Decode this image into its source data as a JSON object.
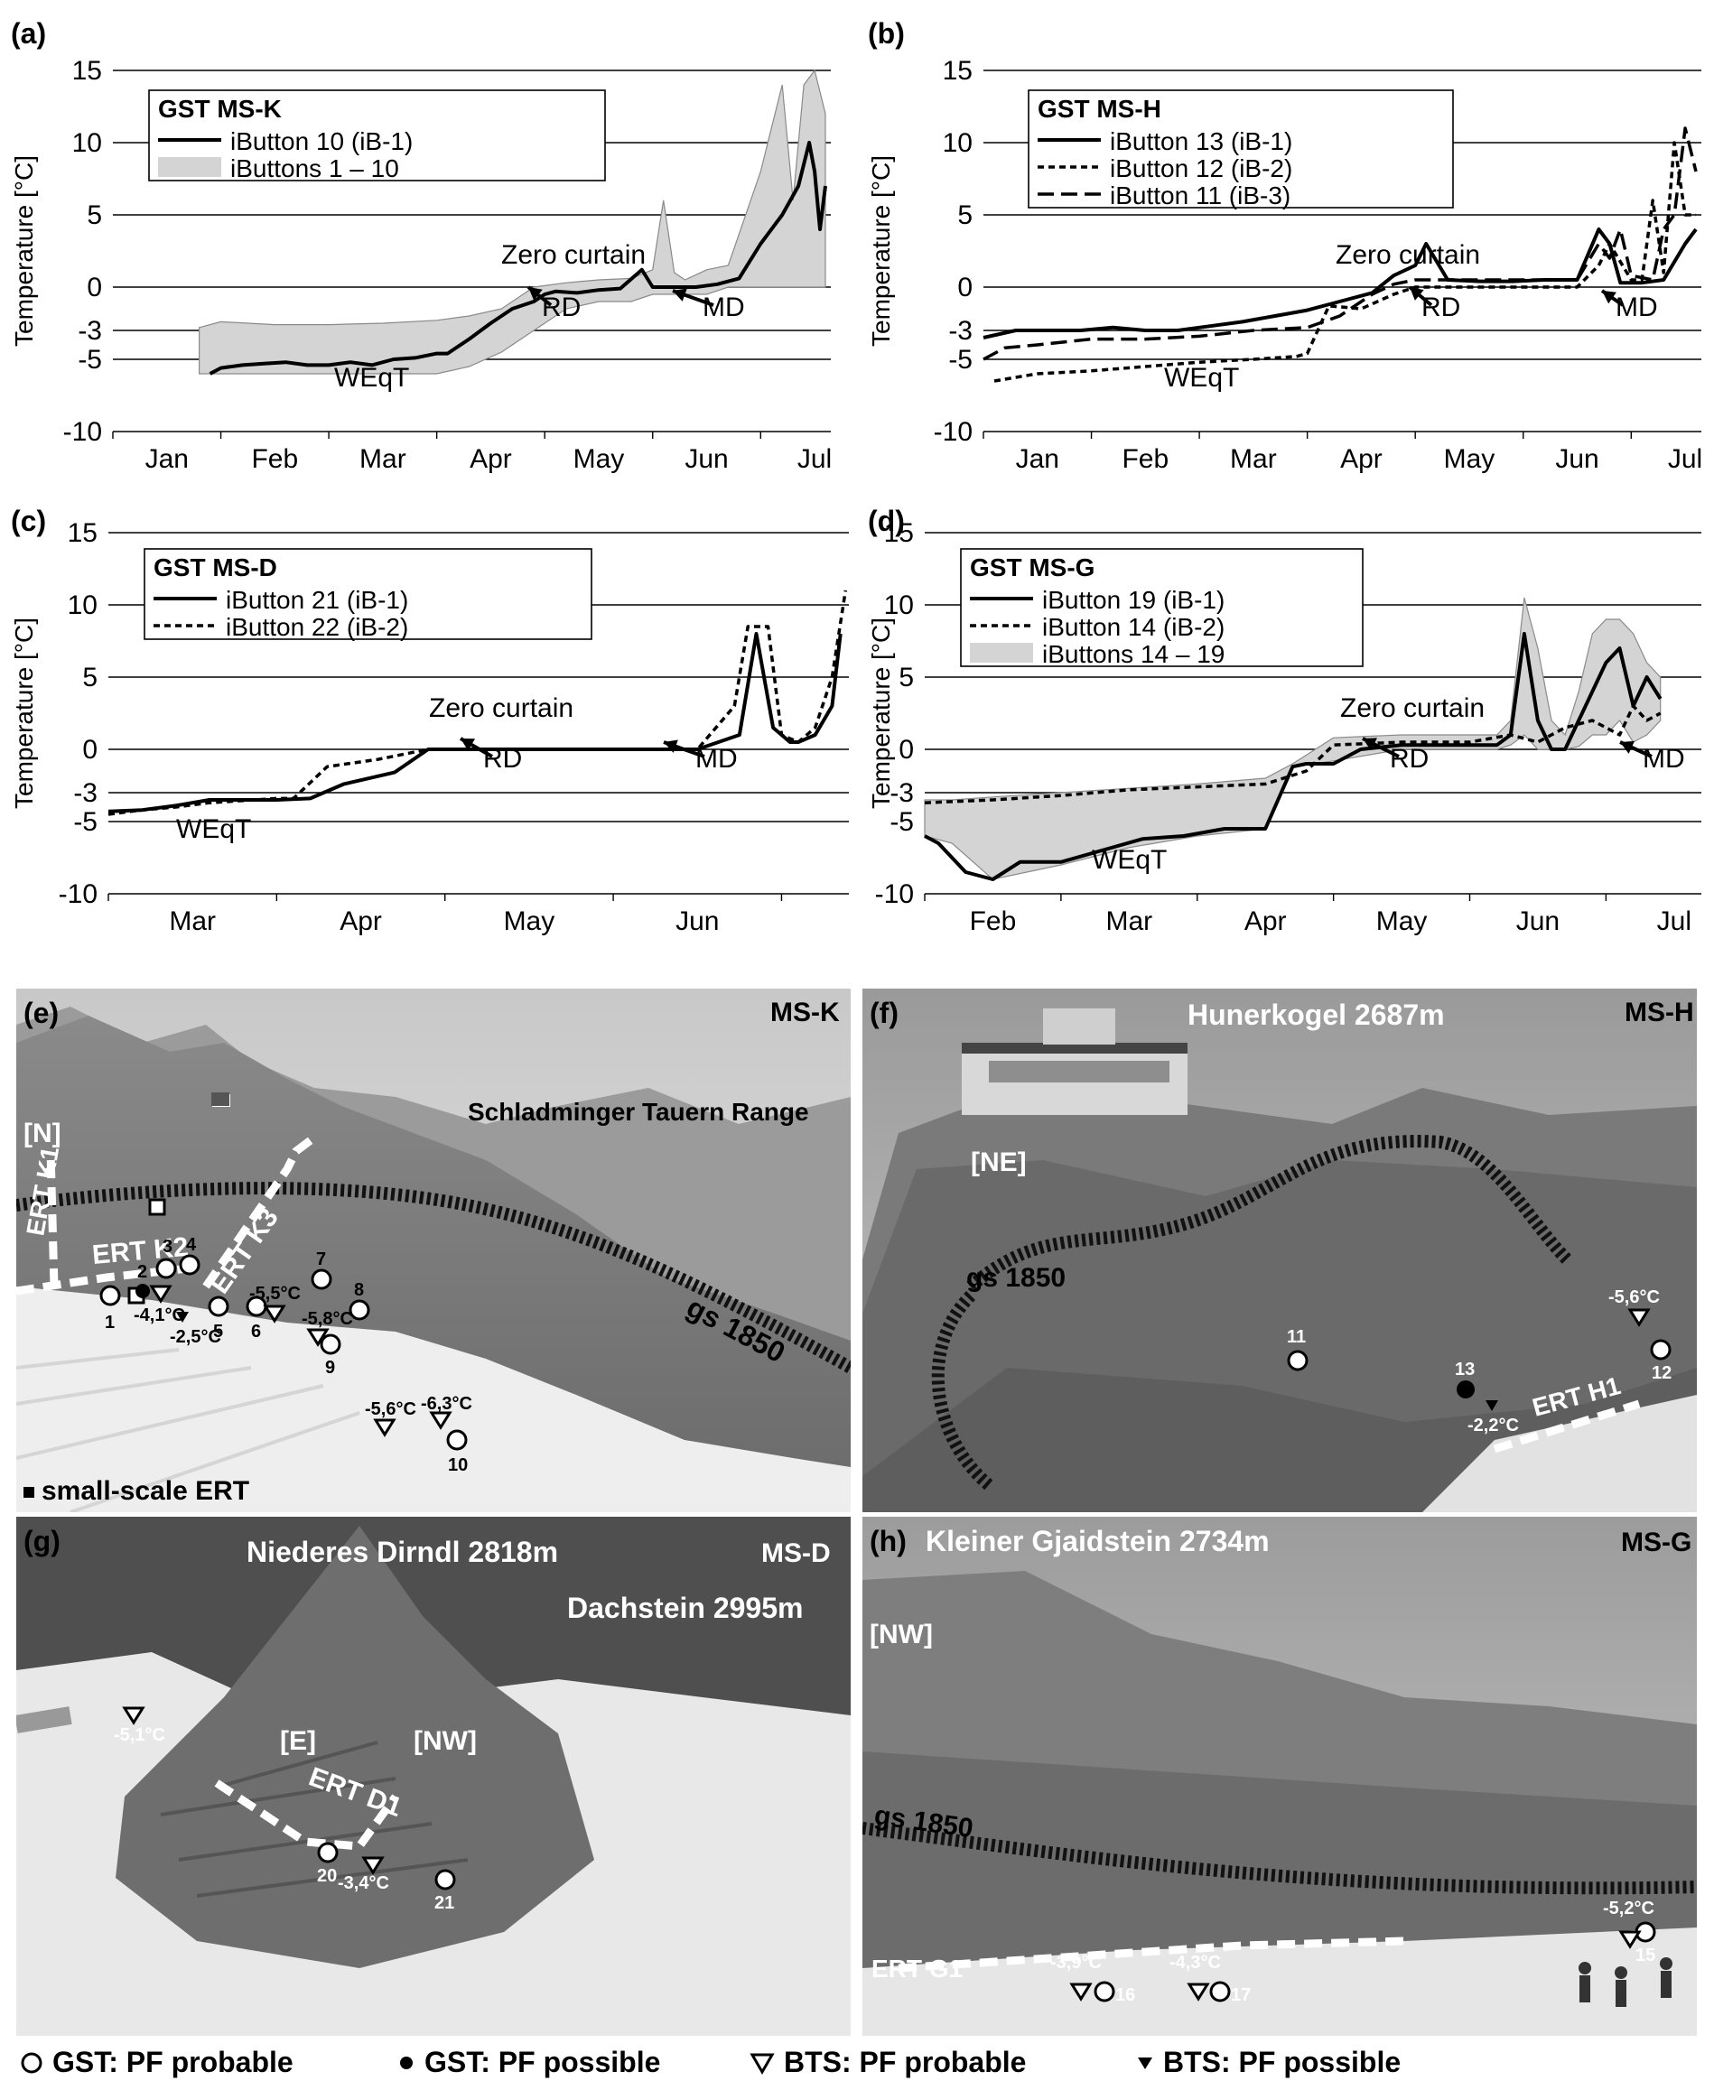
{
  "colors": {
    "band": "#d4d4d4",
    "band_edge": "#8a8a8a",
    "line": "#000000"
  },
  "chart_data": [
    {
      "id": "a",
      "panel_label": "(a)",
      "type": "line",
      "ylabel": "Temperature [°C]",
      "ylim": [
        -10,
        15
      ],
      "y_ticks": [
        "15",
        "10",
        "5",
        "0",
        "-3",
        "-5",
        "-10"
      ],
      "x_ticks": [
        "Jan",
        "Feb",
        "Mar",
        "Apr",
        "May",
        "Jun",
        "Jul"
      ],
      "xlim": [
        0,
        6.65
      ],
      "legend": {
        "title": "GST MS-K",
        "entries": [
          "iButton 10  (iB-1)",
          "iButtons 1 – 10"
        ]
      },
      "annotations": {
        "zero_curtain": "Zero curtain",
        "rd": "RD",
        "md": "MD",
        "weqt": "WEqT"
      },
      "series": [
        {
          "name": "iButton 10  (iB-1)",
          "style": "solid",
          "x": [
            0.9,
            1.0,
            1.2,
            1.4,
            1.6,
            1.8,
            2.0,
            2.2,
            2.4,
            2.6,
            2.8,
            3.0,
            3.1,
            3.3,
            3.5,
            3.7,
            3.9,
            4.0,
            4.1,
            4.3,
            4.5,
            4.7,
            4.9,
            5.0,
            5.2,
            5.4,
            5.6,
            5.8,
            6.0,
            6.2,
            6.35,
            6.45,
            6.5,
            6.55,
            6.6
          ],
          "y": [
            -6,
            -5.6,
            -5.4,
            -5.3,
            -5.2,
            -5.4,
            -5.4,
            -5.2,
            -5.4,
            -5.0,
            -4.9,
            -4.6,
            -4.6,
            -3.6,
            -2.5,
            -1.5,
            -1,
            -0.5,
            -0.3,
            -0.4,
            -0.2,
            -0.1,
            1.2,
            0,
            0,
            0,
            0.2,
            0.6,
            3,
            5,
            7,
            10,
            8,
            4,
            7
          ]
        },
        {
          "name": "iButtons 1 – 10",
          "style": "band",
          "x": [
            0.8,
            1.0,
            1.5,
            2.0,
            2.5,
            3.0,
            3.3,
            3.6,
            3.9,
            4.2,
            4.5,
            4.8,
            5.0,
            5.1,
            5.2,
            5.3,
            5.5,
            5.7,
            6.0,
            6.1,
            6.2,
            6.3,
            6.4,
            6.5,
            6.6
          ],
          "upper": [
            -2.8,
            -2.4,
            -2.6,
            -2.6,
            -2.5,
            -2.3,
            -2.0,
            -1.5,
            0,
            0.3,
            0.5,
            0.6,
            1.2,
            6,
            1,
            0.5,
            1.2,
            1.5,
            8,
            11,
            14,
            6,
            14,
            15,
            12
          ],
          "lower": [
            -6,
            -6,
            -6,
            -6,
            -6,
            -6,
            -5.5,
            -4.5,
            -3,
            -1.5,
            -1,
            -1,
            -0.5,
            -0.5,
            -0.5,
            -0.5,
            -0.5,
            0,
            0,
            0,
            0,
            0,
            0,
            0,
            0
          ]
        }
      ]
    },
    {
      "id": "b",
      "panel_label": "(b)",
      "type": "line",
      "ylabel": "Temperature [°C]",
      "ylim": [
        -10,
        15
      ],
      "y_ticks": [
        "15",
        "10",
        "5",
        "0",
        "-3",
        "-5",
        "-10"
      ],
      "x_ticks": [
        "Jan",
        "Feb",
        "Mar",
        "Apr",
        "May",
        "Jun",
        "Jul"
      ],
      "xlim": [
        0,
        6.65
      ],
      "legend": {
        "title": "GST MS-H",
        "entries": [
          "iButton 13 (iB-1)",
          "iButton 12 (iB-2)",
          "iButton 11 (iB-3)"
        ]
      },
      "annotations": {
        "zero_curtain": "Zero curtain",
        "rd": "RD",
        "md": "MD",
        "weqt": "WEqT"
      },
      "series": [
        {
          "name": "iButton 13 (iB-1)",
          "style": "solid",
          "x": [
            0.0,
            0.3,
            0.6,
            0.9,
            1.2,
            1.5,
            1.8,
            2.1,
            2.4,
            2.7,
            3.0,
            3.3,
            3.6,
            3.8,
            4.0,
            4.1,
            4.3,
            4.6,
            4.9,
            5.2,
            5.5,
            5.7,
            5.8,
            5.9,
            6.1,
            6.3,
            6.5,
            6.6
          ],
          "y": [
            -3.5,
            -3,
            -3,
            -3,
            -2.8,
            -3,
            -3,
            -2.7,
            -2.4,
            -2,
            -1.6,
            -1,
            -0.4,
            0.8,
            1.5,
            3,
            0.5,
            0.4,
            0.4,
            0.5,
            0.5,
            4,
            3,
            0.3,
            0.3,
            0.5,
            3,
            4
          ]
        },
        {
          "name": "iButton 12 (iB-2)",
          "style": "dotted",
          "x": [
            0.1,
            0.5,
            1.0,
            1.5,
            2.0,
            2.5,
            2.9,
            3.0,
            3.2,
            3.5,
            3.8,
            4.0,
            4.5,
            5.0,
            5.5,
            5.7,
            5.8,
            6.0,
            6.1,
            6.2,
            6.3,
            6.4,
            6.5,
            6.6
          ],
          "y": [
            -6.5,
            -6,
            -5.8,
            -5.5,
            -5.2,
            -5,
            -4.8,
            -4.6,
            -1.3,
            -1.5,
            -0.5,
            0,
            0,
            0,
            0,
            1.5,
            3,
            0.5,
            0.5,
            6,
            1,
            10,
            5,
            5
          ]
        },
        {
          "name": "iButton 11 (iB-3)",
          "style": "dashed",
          "x": [
            0.0,
            0.2,
            0.5,
            1.0,
            1.5,
            2.0,
            2.5,
            3.0,
            3.3,
            3.6,
            3.8,
            4.0,
            4.5,
            5.0,
            5.5,
            5.7,
            5.8,
            5.9,
            6.0,
            6.2,
            6.3,
            6.4,
            6.5,
            6.6
          ],
          "y": [
            -5,
            -4.2,
            -4,
            -3.6,
            -3.6,
            -3.4,
            -3,
            -2.8,
            -2,
            -0.5,
            0.2,
            0.5,
            0.5,
            0.5,
            0.5,
            3,
            2,
            4,
            0.8,
            0.5,
            4,
            5,
            11,
            8
          ]
        }
      ]
    },
    {
      "id": "c",
      "panel_label": "(c)",
      "type": "line",
      "ylabel": "Temperature [°C]",
      "ylim": [
        -10,
        15
      ],
      "y_ticks": [
        "15",
        "10",
        "5",
        "0",
        "-3",
        "-5",
        "-10"
      ],
      "x_ticks": [
        "Mar",
        "Apr",
        "May",
        "Jun"
      ],
      "xlim": [
        0,
        4.4
      ],
      "legend": {
        "title": "GST MS-D",
        "entries": [
          "iButton 21 (iB-1)",
          "iButton 22 (iB-2)"
        ]
      },
      "annotations": {
        "zero_curtain": "Zero curtain",
        "rd": "RD",
        "md": "MD",
        "weqt": "WEqT"
      },
      "series": [
        {
          "name": "iButton 21 (iB-1)",
          "style": "solid",
          "x": [
            0.0,
            0.2,
            0.4,
            0.6,
            1.0,
            1.2,
            1.4,
            1.7,
            1.9,
            2.2,
            2.5,
            3.0,
            3.5,
            3.75,
            3.85,
            3.95,
            4.05,
            4.1,
            4.2,
            4.3,
            4.35
          ],
          "y": [
            -4.3,
            -4.2,
            -3.9,
            -3.5,
            -3.5,
            -3.4,
            -2.4,
            -1.6,
            0,
            0,
            0,
            0,
            0,
            1,
            8,
            1.5,
            0.5,
            0.5,
            1,
            3,
            8
          ]
        },
        {
          "name": "iButton 22 (iB-2)",
          "style": "dotted",
          "x": [
            0.0,
            0.2,
            0.4,
            0.6,
            1.0,
            1.1,
            1.3,
            1.6,
            1.9,
            2.2,
            2.5,
            3.0,
            3.5,
            3.72,
            3.8,
            3.92,
            4.0,
            4.1,
            4.2,
            4.3,
            4.38
          ],
          "y": [
            -4.5,
            -4.2,
            -4,
            -3.7,
            -3.4,
            -3.4,
            -1.2,
            -0.7,
            0,
            0,
            0,
            0,
            0,
            3,
            8.5,
            8.5,
            1,
            0.5,
            1.5,
            5,
            11
          ]
        }
      ]
    },
    {
      "id": "d",
      "panel_label": "(d)",
      "type": "line",
      "ylabel": "Temperature [°C]",
      "ylim": [
        -10,
        15
      ],
      "y_ticks": [
        "15",
        "10",
        "5",
        "0",
        "-3",
        "-5",
        "-10"
      ],
      "x_ticks": [
        "Feb",
        "Mar",
        "Apr",
        "May",
        "Jun",
        "Jul"
      ],
      "xlim": [
        0,
        5.7
      ],
      "legend": {
        "title": "GST MS-G",
        "entries": [
          "iButton 19 (iB-1)",
          "iButton 14 (iB-2)",
          "iButtons 14 – 19"
        ]
      },
      "annotations": {
        "zero_curtain": "Zero curtain",
        "rd": "RD",
        "md": "MD",
        "weqt": "WEqT"
      },
      "series": [
        {
          "name": "iButton 19 (iB-1)",
          "style": "solid",
          "x": [
            0.0,
            0.1,
            0.3,
            0.5,
            0.7,
            1.0,
            1.3,
            1.6,
            1.9,
            2.2,
            2.5,
            2.7,
            2.8,
            3.0,
            3.2,
            3.5,
            4.0,
            4.2,
            4.3,
            4.4,
            4.5,
            4.6,
            4.7,
            4.9,
            5.0,
            5.1,
            5.2,
            5.3,
            5.4
          ],
          "y": [
            -6,
            -6.5,
            -8.5,
            -9,
            -7.8,
            -7.8,
            -7,
            -6.2,
            -6,
            -5.5,
            -5.5,
            -1.2,
            -1,
            -1,
            0,
            0.3,
            0.3,
            0.3,
            1,
            8,
            2,
            0,
            0,
            4,
            6,
            7,
            3,
            5,
            3.5
          ]
        },
        {
          "name": "iButton 14 (iB-2)",
          "style": "dotted",
          "x": [
            0.0,
            0.5,
            1.0,
            1.5,
            2.0,
            2.5,
            2.8,
            3.0,
            3.5,
            4.0,
            4.3,
            4.5,
            4.7,
            4.9,
            5.1,
            5.2,
            5.3,
            5.4
          ],
          "y": [
            -3.7,
            -3.5,
            -3.2,
            -2.8,
            -2.6,
            -2.4,
            -1.5,
            0.3,
            0.5,
            0.5,
            1,
            0.5,
            1.5,
            2,
            1,
            3,
            2,
            2.5
          ]
        },
        {
          "name": "iButtons 14 – 19",
          "style": "band",
          "x": [
            0.0,
            0.2,
            0.5,
            1.0,
            1.5,
            2.0,
            2.5,
            2.7,
            3.0,
            3.5,
            4.0,
            4.2,
            4.3,
            4.4,
            4.5,
            4.6,
            4.7,
            4.8,
            4.9,
            5.0,
            5.1,
            5.2,
            5.3,
            5.4
          ],
          "upper": [
            -3.5,
            -3.5,
            -3.3,
            -3,
            -2.7,
            -2.4,
            -2,
            -1,
            0.8,
            1,
            1,
            1,
            2,
            10.5,
            7,
            2,
            1,
            4,
            8,
            9,
            9,
            8,
            6,
            5
          ],
          "lower": [
            -6,
            -6.5,
            -9,
            -8,
            -6.8,
            -6,
            -5.5,
            -1.2,
            -0.8,
            0,
            0,
            0,
            0.3,
            1,
            0,
            0,
            0,
            0.2,
            1,
            1,
            2,
            0.5,
            1,
            2
          ]
        }
      ]
    }
  ],
  "photos": {
    "e": {
      "label": "(e)",
      "site": "MS-K",
      "range": "Schladminger Tauern Range",
      "aspect": "[N]",
      "erts": [
        "ERT K1",
        "ERT K2",
        "ERT K3"
      ],
      "gs": "gs 1850",
      "small_ert": "small-scale ERT",
      "points": [
        "1",
        "2",
        "3",
        "4",
        "5",
        "6",
        "7",
        "8",
        "9",
        "10"
      ],
      "temps": [
        "-4,1°C",
        "-2,5°C",
        "-5,5°C",
        "-5,8°C",
        "-5,6°C",
        "-6,3°C"
      ]
    },
    "f": {
      "label": "(f)",
      "site": "MS-H",
      "peak": "Hunerkogel 2687m",
      "aspect": "[NE]",
      "gs": "gs 1850",
      "erts": [
        "ERT H1"
      ],
      "points": [
        "11",
        "12",
        "13"
      ],
      "temps": [
        "-5,6°C",
        "-2,2°C"
      ]
    },
    "g": {
      "label": "(g)",
      "site": "MS-D",
      "peak": "Niederes Dirndl 2818m",
      "peak2": "Dachstein 2995m",
      "aspects": [
        "[E]",
        "[NW]"
      ],
      "erts": [
        "ERT D1"
      ],
      "points": [
        "20",
        "21"
      ],
      "temps": [
        "-5,1°C",
        "-3,4°C"
      ]
    },
    "h": {
      "label": "(h)",
      "site": "MS-G",
      "peak": "Kleiner Gjaidstein 2734m",
      "aspect": "[NW]",
      "gs": "gs 1850",
      "erts": [
        "ERT G1"
      ],
      "points": [
        "15",
        "16",
        "17"
      ],
      "temps": [
        "-3,9°C",
        "-4,3°C",
        "-5,2°C"
      ]
    }
  },
  "legend": {
    "gst_probable": "GST: PF probable",
    "gst_possible": "GST: PF possible",
    "bts_probable": "BTS: PF probable",
    "bts_possible": "BTS: PF possible"
  }
}
